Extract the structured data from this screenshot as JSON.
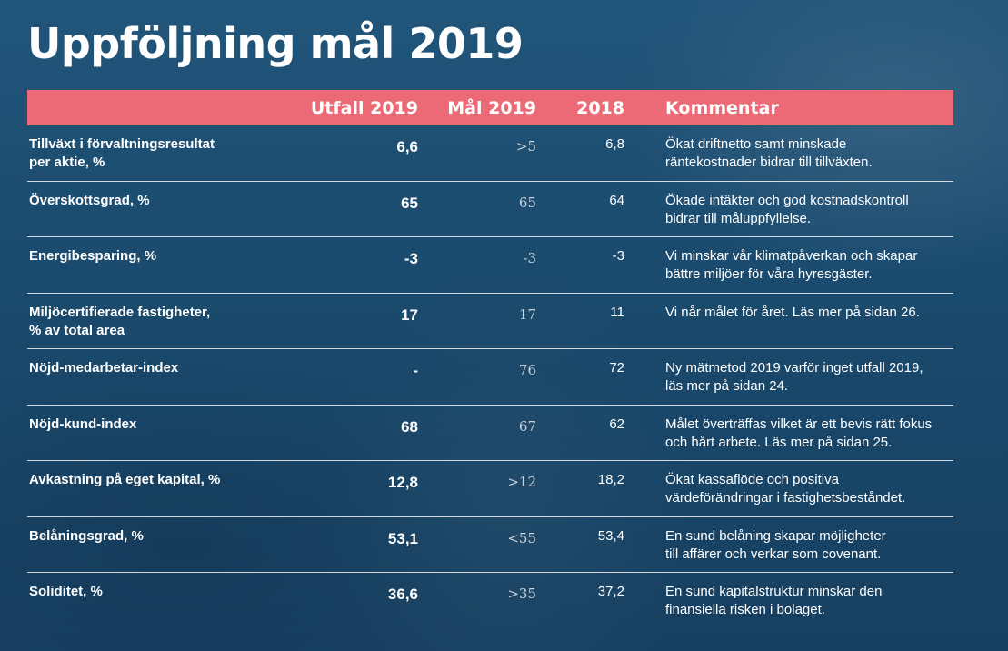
{
  "title": "Uppföljning mål 2019",
  "colors": {
    "header_bg": "#ec6a76",
    "background": "#1c4a6e",
    "text": "#ffffff"
  },
  "header": {
    "col_utfall": "Utfall 2019",
    "col_mal": "Mål 2019",
    "col_prev": "2018",
    "col_comment": "Kommentar"
  },
  "rows": [
    {
      "label_1": "Tillväxt i förvaltningsresultat",
      "label_2": "per aktie, %",
      "utfall": "6,6",
      "mal": ">5",
      "prev": "6,8",
      "comment_1": "Ökat driftnetto samt minskade",
      "comment_2": "räntekostnader bidrar till tillväxten."
    },
    {
      "label_1": "Överskottsgrad, %",
      "label_2": "",
      "utfall": "65",
      "mal": "65",
      "prev": "64",
      "comment_1": "Ökade intäkter och god kostnadskontroll",
      "comment_2": "bidrar till måluppfyllelse."
    },
    {
      "label_1": "Energibesparing, %",
      "label_2": "",
      "utfall": "-3",
      "mal": "-3",
      "prev": "-3",
      "comment_1": "Vi minskar vår klimatpåverkan och skapar",
      "comment_2": "bättre miljöer för våra hyresgäster."
    },
    {
      "label_1": "Miljöcertifierade fastigheter,",
      "label_2": "% av total area",
      "utfall": "17",
      "mal": "17",
      "prev": "11",
      "comment_1": "Vi når målet för året. Läs mer på sidan 26.",
      "comment_2": ""
    },
    {
      "label_1": "Nöjd-medarbetar-index",
      "label_2": "",
      "utfall": "-",
      "mal": "76",
      "prev": "72",
      "comment_1": "Ny mätmetod 2019 varför inget utfall 2019,",
      "comment_2": "läs mer på sidan 24."
    },
    {
      "label_1": "Nöjd-kund-index",
      "label_2": "",
      "utfall": "68",
      "mal": "67",
      "prev": "62",
      "comment_1": "Målet överträffas vilket är ett bevis rätt fokus",
      "comment_2": "och hårt arbete. Läs mer på sidan 25."
    },
    {
      "label_1": "Avkastning på eget kapital, %",
      "label_2": "",
      "utfall": "12,8",
      "mal": ">12",
      "prev": "18,2",
      "comment_1": "Ökat kassaflöde och positiva",
      "comment_2": "värdeförändringar i fastighetsbeståndet."
    },
    {
      "label_1": "Belåningsgrad, %",
      "label_2": "",
      "utfall": "53,1",
      "mal": "<55",
      "prev": "53,4",
      "comment_1": "En sund belåning skapar möjligheter",
      "comment_2": "till affärer och verkar som covenant."
    },
    {
      "label_1": "Soliditet, %",
      "label_2": "",
      "utfall": "36,6",
      "mal": ">35",
      "prev": "37,2",
      "comment_1": "En sund kapitalstruktur minskar den",
      "comment_2": "finansiella risken i bolaget."
    }
  ]
}
